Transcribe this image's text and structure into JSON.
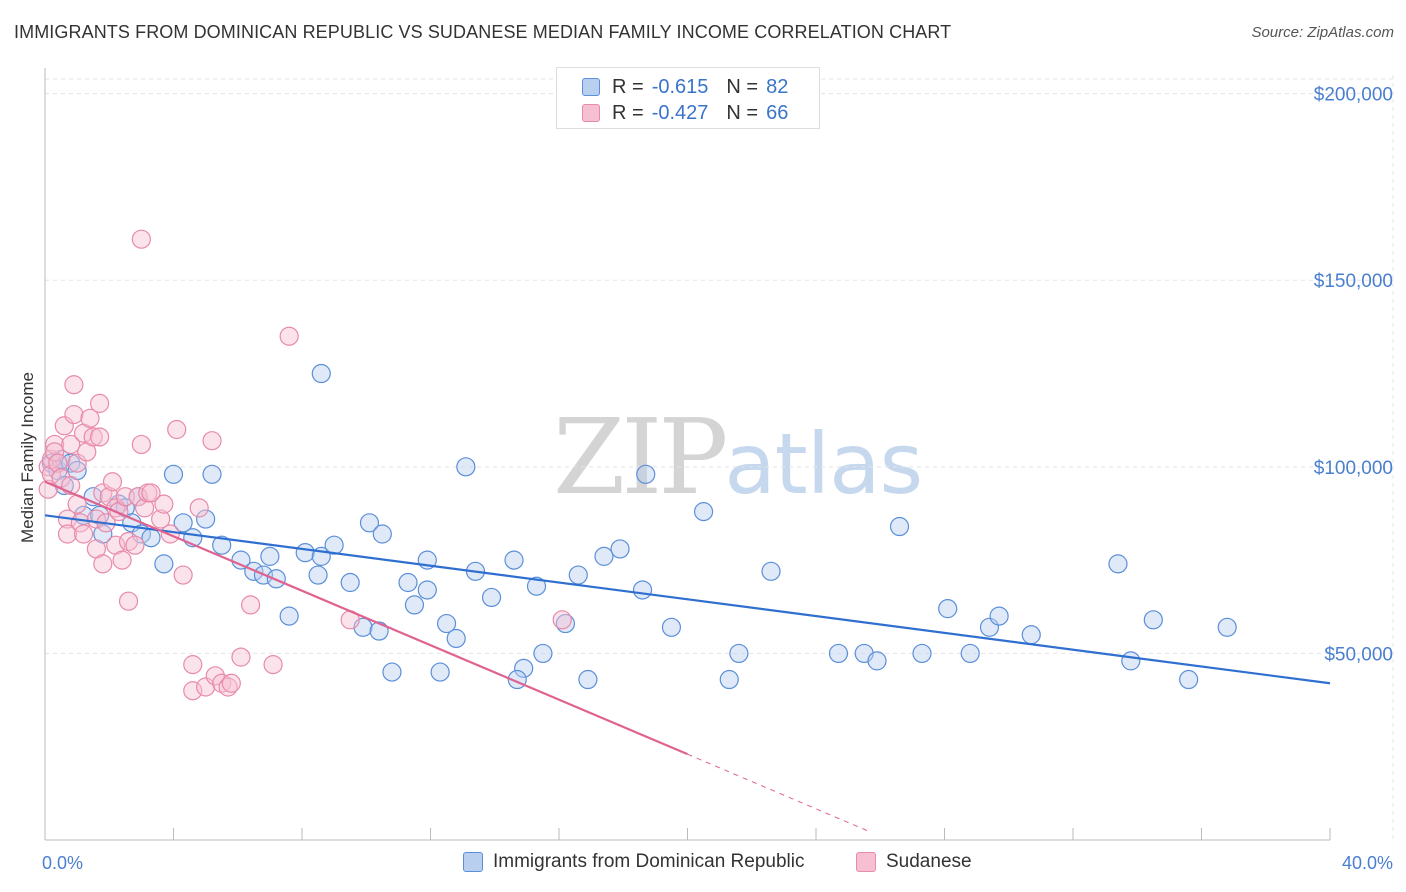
{
  "title": "IMMIGRANTS FROM DOMINICAN REPUBLIC VS SUDANESE MEDIAN FAMILY INCOME CORRELATION CHART",
  "source": "Source: ZipAtlas.com",
  "watermark": {
    "zip": "ZIP",
    "atlas": "atlas"
  },
  "colors": {
    "blue": "#5b8fd9",
    "blue_fill": "#b9cff0",
    "blue_line": "#2f6fd0",
    "pink": "#e88aaa",
    "pink_fill": "#f6c0d2",
    "pink_line": "#e0628f",
    "tick_text": "#4a7fcf"
  },
  "legend_top": {
    "rows": [
      {
        "r_label": "R =",
        "r_value": "-0.615",
        "n_label": "N =",
        "n_value": "82"
      },
      {
        "r_label": "R =",
        "r_value": "-0.427",
        "n_label": "N =",
        "n_value": "66"
      }
    ]
  },
  "legend_bottom": [
    "Immigrants from Dominican Republic",
    "Sudanese"
  ],
  "chart_data": {
    "type": "scatter",
    "title": "IMMIGRANTS FROM DOMINICAN REPUBLIC VS SUDANESE MEDIAN FAMILY INCOME CORRELATION CHART",
    "xlabel": "",
    "ylabel": "Median Family Income",
    "xlim": [
      0,
      40
    ],
    "ylim": [
      0,
      205000
    ],
    "x_tick_labels": [
      "0.0%",
      "40.0%"
    ],
    "y_ticks": [
      50000,
      100000,
      150000,
      200000
    ],
    "y_tick_labels": [
      "$50,000",
      "$100,000",
      "$150,000",
      "$200,000"
    ],
    "grid": true,
    "series": [
      {
        "name": "Immigrants from Dominican Republic",
        "color": "#5b8fd9",
        "trend": {
          "x": [
            0,
            40
          ],
          "y": [
            87000,
            42000
          ]
        },
        "points": [
          [
            0.2,
            101000
          ],
          [
            0.4,
            99000
          ],
          [
            0.5,
            102000
          ],
          [
            0.6,
            95000
          ],
          [
            0.8,
            101000
          ],
          [
            1.0,
            99000
          ],
          [
            1.2,
            87000
          ],
          [
            1.5,
            92000
          ],
          [
            1.7,
            87000
          ],
          [
            1.8,
            82000
          ],
          [
            2.3,
            90000
          ],
          [
            2.5,
            89000
          ],
          [
            2.7,
            85000
          ],
          [
            2.9,
            92000
          ],
          [
            3.0,
            82000
          ],
          [
            3.3,
            81000
          ],
          [
            3.7,
            74000
          ],
          [
            4.0,
            98000
          ],
          [
            4.3,
            85000
          ],
          [
            5.2,
            98000
          ],
          [
            5.0,
            86000
          ],
          [
            4.6,
            81000
          ],
          [
            5.5,
            79000
          ],
          [
            6.1,
            75000
          ],
          [
            6.5,
            72000
          ],
          [
            6.8,
            71000
          ],
          [
            7.0,
            76000
          ],
          [
            7.2,
            70000
          ],
          [
            7.6,
            60000
          ],
          [
            8.1,
            77000
          ],
          [
            8.5,
            71000
          ],
          [
            8.6,
            76000
          ],
          [
            9.0,
            79000
          ],
          [
            9.5,
            69000
          ],
          [
            9.9,
            57000
          ],
          [
            10.1,
            85000
          ],
          [
            10.4,
            56000
          ],
          [
            10.5,
            82000
          ],
          [
            10.8,
            45000
          ],
          [
            11.3,
            69000
          ],
          [
            11.5,
            63000
          ],
          [
            11.9,
            67000
          ],
          [
            11.9,
            75000
          ],
          [
            12.3,
            45000
          ],
          [
            12.5,
            58000
          ],
          [
            12.8,
            54000
          ],
          [
            13.1,
            100000
          ],
          [
            13.4,
            72000
          ],
          [
            13.9,
            65000
          ],
          [
            14.6,
            75000
          ],
          [
            14.9,
            46000
          ],
          [
            14.7,
            43000
          ],
          [
            15.3,
            68000
          ],
          [
            15.5,
            50000
          ],
          [
            16.2,
            58000
          ],
          [
            16.9,
            43000
          ],
          [
            16.6,
            71000
          ],
          [
            17.4,
            76000
          ],
          [
            17.9,
            78000
          ],
          [
            18.6,
            67000
          ],
          [
            18.7,
            98000
          ],
          [
            19.5,
            57000
          ],
          [
            20.5,
            88000
          ],
          [
            21.3,
            43000
          ],
          [
            21.6,
            50000
          ],
          [
            22.6,
            72000
          ],
          [
            24.7,
            50000
          ],
          [
            25.5,
            50000
          ],
          [
            25.9,
            48000
          ],
          [
            26.6,
            84000
          ],
          [
            27.3,
            50000
          ],
          [
            28.1,
            62000
          ],
          [
            28.8,
            50000
          ],
          [
            29.4,
            57000
          ],
          [
            29.7,
            60000
          ],
          [
            30.7,
            55000
          ],
          [
            33.4,
            74000
          ],
          [
            33.8,
            48000
          ],
          [
            34.5,
            59000
          ],
          [
            35.6,
            43000
          ],
          [
            36.8,
            57000
          ],
          [
            8.6,
            125000
          ]
        ]
      },
      {
        "name": "Sudanese",
        "color": "#e88aaa",
        "trend": {
          "x": [
            0,
            20
          ],
          "y": [
            96000,
            23000
          ]
        },
        "trend_extension": {
          "x": [
            20,
            25.6
          ],
          "y": [
            23000,
            2500
          ]
        },
        "points": [
          [
            0.1,
            100000
          ],
          [
            0.1,
            94000
          ],
          [
            0.2,
            98000
          ],
          [
            0.2,
            102000
          ],
          [
            0.3,
            106000
          ],
          [
            0.3,
            104000
          ],
          [
            0.4,
            101000
          ],
          [
            0.5,
            97000
          ],
          [
            0.6,
            111000
          ],
          [
            0.7,
            86000
          ],
          [
            0.7,
            82000
          ],
          [
            0.8,
            95000
          ],
          [
            0.8,
            106000
          ],
          [
            0.9,
            114000
          ],
          [
            0.9,
            122000
          ],
          [
            1.0,
            101000
          ],
          [
            1.0,
            90000
          ],
          [
            1.1,
            85000
          ],
          [
            1.2,
            82000
          ],
          [
            1.2,
            109000
          ],
          [
            1.3,
            104000
          ],
          [
            1.4,
            113000
          ],
          [
            1.5,
            108000
          ],
          [
            1.6,
            86000
          ],
          [
            1.6,
            78000
          ],
          [
            1.7,
            117000
          ],
          [
            1.7,
            108000
          ],
          [
            1.8,
            93000
          ],
          [
            1.8,
            74000
          ],
          [
            1.9,
            85000
          ],
          [
            2.0,
            92000
          ],
          [
            2.1,
            96000
          ],
          [
            2.2,
            89000
          ],
          [
            2.2,
            79000
          ],
          [
            2.3,
            88000
          ],
          [
            2.4,
            75000
          ],
          [
            2.5,
            92000
          ],
          [
            2.6,
            80000
          ],
          [
            2.6,
            64000
          ],
          [
            2.8,
            79000
          ],
          [
            2.9,
            92000
          ],
          [
            3.0,
            106000
          ],
          [
            3.1,
            89000
          ],
          [
            3.2,
            93000
          ],
          [
            3.3,
            93000
          ],
          [
            3.6,
            86000
          ],
          [
            3.7,
            90000
          ],
          [
            3.9,
            82000
          ],
          [
            4.1,
            110000
          ],
          [
            4.3,
            71000
          ],
          [
            4.6,
            47000
          ],
          [
            4.6,
            40000
          ],
          [
            4.8,
            89000
          ],
          [
            5.0,
            41000
          ],
          [
            5.2,
            107000
          ],
          [
            5.3,
            44000
          ],
          [
            5.5,
            42000
          ],
          [
            5.7,
            41000
          ],
          [
            5.8,
            42000
          ],
          [
            6.1,
            49000
          ],
          [
            6.4,
            63000
          ],
          [
            7.1,
            47000
          ],
          [
            7.6,
            135000
          ],
          [
            9.5,
            59000
          ],
          [
            16.1,
            59000
          ],
          [
            3.0,
            161000
          ]
        ]
      }
    ]
  }
}
